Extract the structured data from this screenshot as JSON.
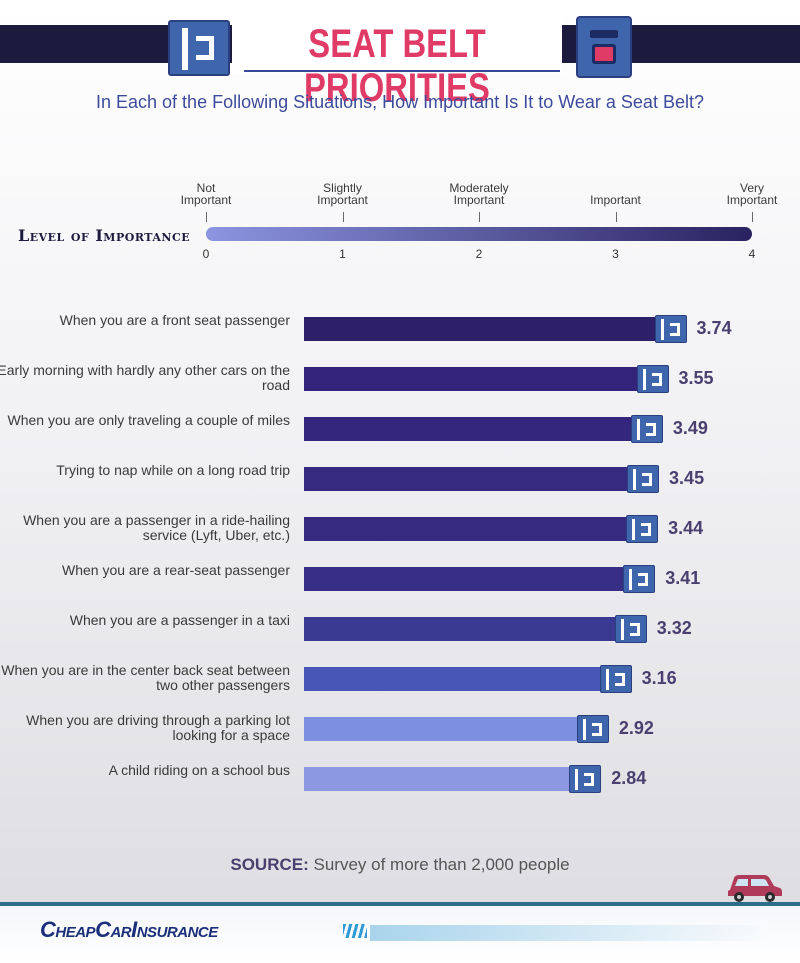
{
  "header": {
    "title": "SEAT BELT PRIORITIES",
    "subtitle": "In Each of the Following Situations, How Important Is It to Wear a Seat Belt?"
  },
  "scale": {
    "title": "Level of Importance",
    "levels": [
      {
        "value": "0",
        "label": "Not Important"
      },
      {
        "value": "1",
        "label": "Slightly Important"
      },
      {
        "value": "2",
        "label": "Moderately Important"
      },
      {
        "value": "3",
        "label": "Important"
      },
      {
        "value": "4",
        "label": "Very Important"
      }
    ]
  },
  "chart_data": {
    "type": "bar",
    "orientation": "horizontal",
    "categories": [
      "When you are a front seat passenger",
      "Early morning with hardly any other cars on the road",
      "When you are only traveling a couple of miles",
      "Trying to nap while on a long road trip",
      "When you are a passenger in a ride-hailing service (Lyft, Uber, etc.)",
      "When you are a rear-seat passenger",
      "When you are a passenger in a taxi",
      "When you are in the center back seat between two other passengers",
      "When you are driving through a parking lot looking for a space",
      "A child riding on a school bus"
    ],
    "values": [
      3.74,
      3.55,
      3.49,
      3.45,
      3.44,
      3.41,
      3.32,
      3.16,
      2.92,
      2.84
    ],
    "value_labels": [
      "3.74",
      "3.55",
      "3.49",
      "3.45",
      "3.44",
      "3.41",
      "3.32",
      "3.16",
      "2.92",
      "2.84"
    ],
    "colors": [
      "#2e1f6b",
      "#33237a",
      "#34267d",
      "#352a80",
      "#352a80",
      "#372e86",
      "#3a3a92",
      "#4856b8",
      "#7d8fe0",
      "#8c98e2"
    ],
    "xlim": [
      0,
      4
    ],
    "grid": false,
    "legend": "none"
  },
  "source": {
    "label": "SOURCE:",
    "text": "Survey of more than 2,000 people"
  },
  "footer": {
    "brand": "CheapCarInsurance"
  },
  "colors": {
    "title": "#e03a66",
    "navy": "#1c1a3d",
    "buckle": "#3f65ad",
    "value_text": "#4a3f6e"
  }
}
